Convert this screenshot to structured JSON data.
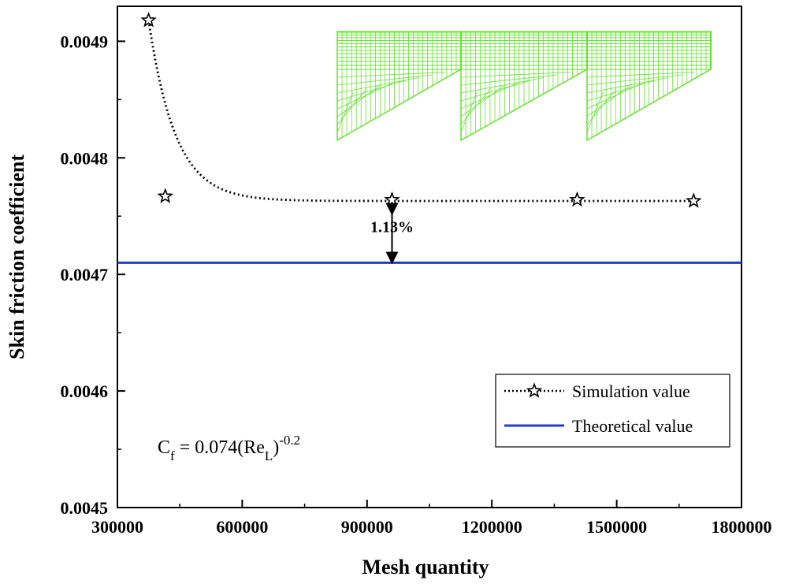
{
  "chart_data": {
    "type": "scatter",
    "title": "",
    "xlabel": "Mesh quantity",
    "ylabel": "Skin friction coefficient",
    "xlim": [
      300000,
      1800000
    ],
    "ylim": [
      0.0045,
      0.00493
    ],
    "x_ticks": [
      300000,
      600000,
      900000,
      1200000,
      1500000,
      1800000
    ],
    "x_tick_labels": [
      "300000",
      "600000",
      "900000",
      "1200000",
      "1500000",
      "1800000"
    ],
    "y_ticks": [
      0.0045,
      0.0046,
      0.0047,
      0.0048,
      0.0049
    ],
    "y_tick_labels": [
      "0.0045",
      "0.0046",
      "0.0047",
      "0.0048",
      "0.0049"
    ],
    "series": [
      {
        "name": "Simulation value",
        "marker": "star",
        "line_style": "dotted",
        "color": "#000000",
        "points": [
          {
            "x": 375000,
            "y": 0.004918
          },
          {
            "x": 415000,
            "y": 0.004767
          },
          {
            "x": 960000,
            "y": 0.004764
          },
          {
            "x": 1405000,
            "y": 0.004764
          },
          {
            "x": 1685000,
            "y": 0.004763
          }
        ],
        "fit_curve": {
          "asymptote": 0.004763,
          "x_range": [
            375000,
            1685000
          ]
        }
      },
      {
        "name": "Theoretical value",
        "type": "hline",
        "color": "#1f3fbf",
        "y": 0.00471
      }
    ],
    "annotations": [
      {
        "text": "1.13%",
        "x": 960000,
        "y_from": 0.00471,
        "y_to": 0.004764
      }
    ],
    "formula": {
      "base": "C",
      "base_sub": "f",
      "body": " = 0.074(Re",
      "body_sub": "L",
      "close": ")",
      "exponent": "-0.2"
    },
    "legend": {
      "position": "bottom-right",
      "entries": [
        "Simulation value",
        "Theoretical value"
      ]
    },
    "inset": {
      "description": "mesh",
      "color": "#66e033"
    }
  }
}
